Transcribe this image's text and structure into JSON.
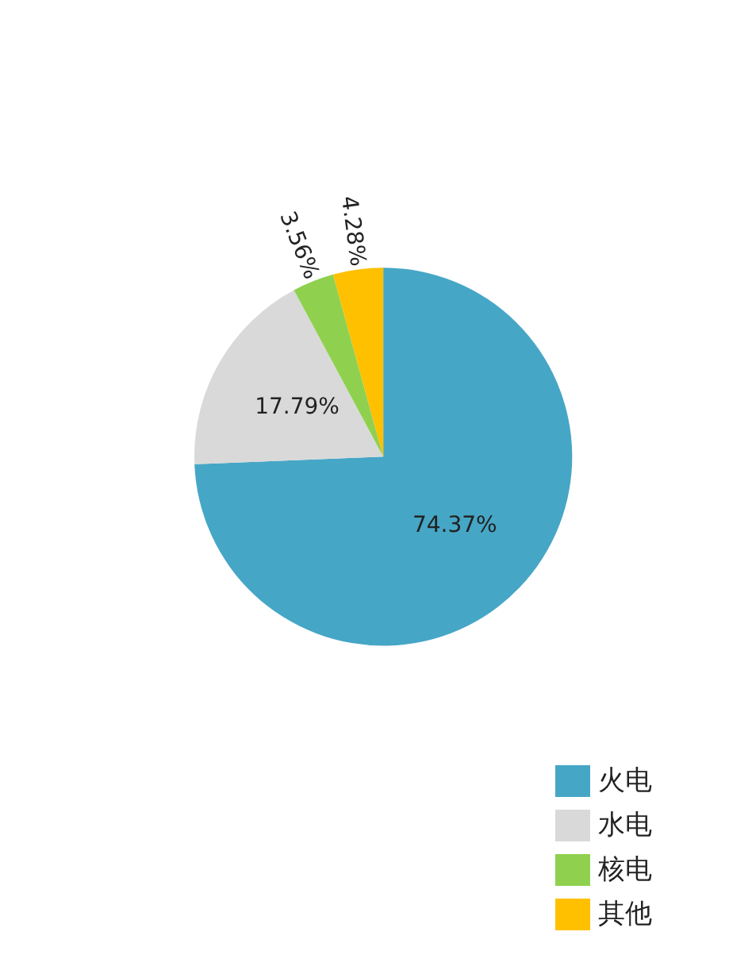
{
  "chart_data": {
    "type": "pie",
    "categories": [
      "火电",
      "水电",
      "核电",
      "其他"
    ],
    "values": [
      74.37,
      17.79,
      3.56,
      4.28
    ],
    "colors": [
      "#46a6c6",
      "#d9d9d9",
      "#8fd14f",
      "#ffc000"
    ],
    "value_labels": [
      "74.37%",
      "17.79%",
      "3.56%",
      "4.28%"
    ],
    "legend": "bottom right"
  }
}
